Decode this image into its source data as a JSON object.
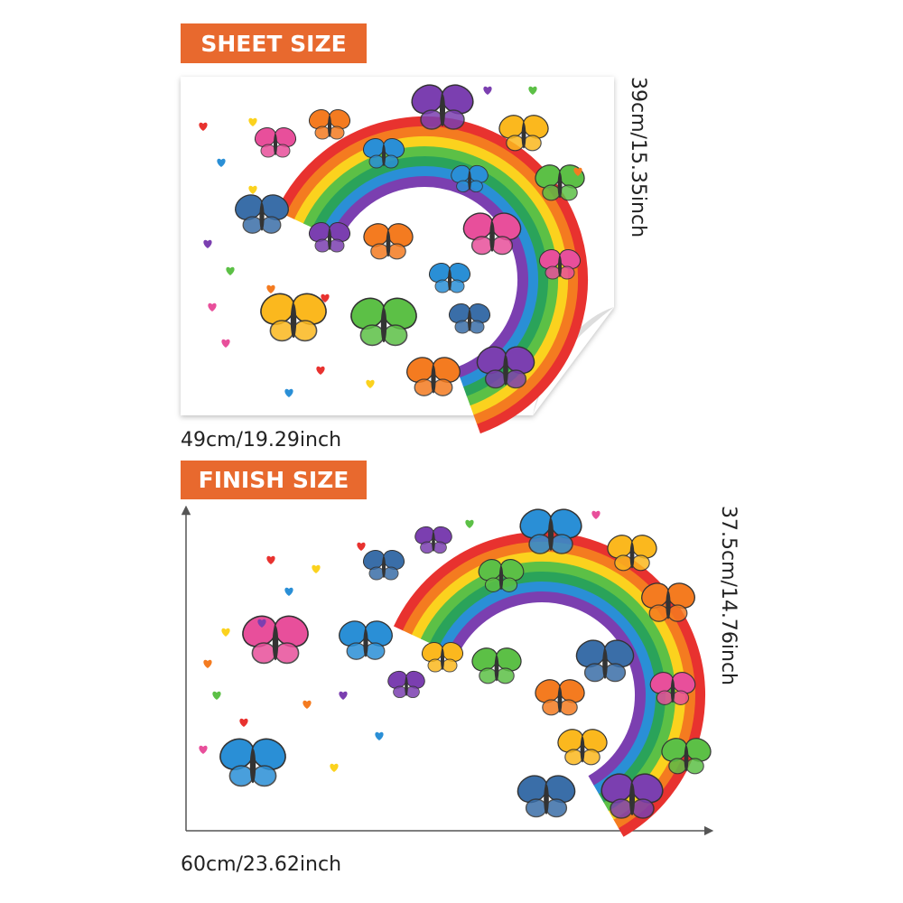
{
  "sheet": {
    "label": "SHEET SIZE",
    "height": "39cm/15.35inch",
    "width": "49cm/19.29inch"
  },
  "finish": {
    "label": "FINISH SIZE",
    "height": "37.5cm/14.76inch",
    "width": "60cm/23.62inch"
  }
}
